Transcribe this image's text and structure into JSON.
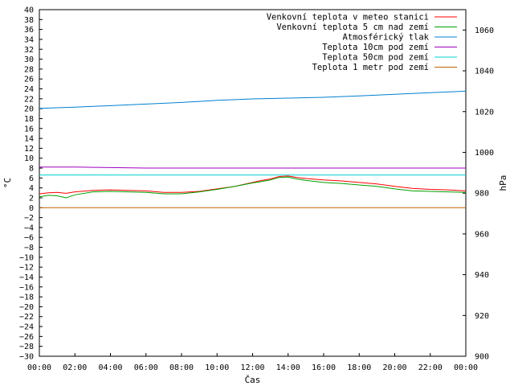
{
  "chart_data": {
    "type": "line",
    "xlabel": "Čas",
    "ylabel": "°C",
    "y2label": "hPa",
    "x_ticks": [
      "00:00",
      "02:00",
      "04:00",
      "06:00",
      "08:00",
      "10:00",
      "12:00",
      "14:00",
      "16:00",
      "18:00",
      "20:00",
      "22:00",
      "00:00"
    ],
    "x_range_hours": [
      0,
      24
    ],
    "ylim": [
      -30,
      40
    ],
    "y_tick_step": 2,
    "y2lim": [
      900,
      1070
    ],
    "y2_ticks": [
      900,
      920,
      940,
      960,
      980,
      1000,
      1020,
      1040,
      1060
    ],
    "grid": "off",
    "legend_position": "top-right",
    "series": [
      {
        "name": "Venkovní teplota v meteo stanici",
        "color": "#ff0000",
        "axis": "left",
        "points": [
          [
            0,
            2.8
          ],
          [
            0.5,
            3.0
          ],
          [
            1,
            3.1
          ],
          [
            1.5,
            2.9
          ],
          [
            2,
            3.2
          ],
          [
            3,
            3.5
          ],
          [
            4,
            3.6
          ],
          [
            5,
            3.5
          ],
          [
            6,
            3.4
          ],
          [
            7,
            3.1
          ],
          [
            8,
            3.1
          ],
          [
            9,
            3.3
          ],
          [
            10,
            3.8
          ],
          [
            11,
            4.3
          ],
          [
            12,
            5.1
          ],
          [
            12.5,
            5.5
          ],
          [
            13,
            5.8
          ],
          [
            13.5,
            6.3
          ],
          [
            14,
            6.4
          ],
          [
            14.5,
            6.1
          ],
          [
            15,
            5.9
          ],
          [
            16,
            5.6
          ],
          [
            17,
            5.4
          ],
          [
            18,
            5.1
          ],
          [
            19,
            4.8
          ],
          [
            20,
            4.3
          ],
          [
            21,
            3.9
          ],
          [
            22,
            3.7
          ],
          [
            23,
            3.6
          ],
          [
            24,
            3.4
          ]
        ]
      },
      {
        "name": "Venkovní teplota 5 cm nad zemí",
        "color": "#00a000",
        "axis": "left",
        "points": [
          [
            0,
            2.2
          ],
          [
            0.5,
            2.5
          ],
          [
            1,
            2.4
          ],
          [
            1.5,
            2.0
          ],
          [
            2,
            2.6
          ],
          [
            3,
            3.2
          ],
          [
            4,
            3.3
          ],
          [
            5,
            3.2
          ],
          [
            6,
            3.1
          ],
          [
            7,
            2.8
          ],
          [
            8,
            2.8
          ],
          [
            9,
            3.2
          ],
          [
            10,
            3.7
          ],
          [
            11,
            4.3
          ],
          [
            12,
            5.0
          ],
          [
            12.5,
            5.3
          ],
          [
            13,
            5.6
          ],
          [
            13.5,
            6.1
          ],
          [
            14,
            6.2
          ],
          [
            14.5,
            5.8
          ],
          [
            15,
            5.5
          ],
          [
            16,
            5.1
          ],
          [
            17,
            4.9
          ],
          [
            18,
            4.6
          ],
          [
            19,
            4.3
          ],
          [
            20,
            3.8
          ],
          [
            21,
            3.4
          ],
          [
            22,
            3.3
          ],
          [
            23,
            3.2
          ],
          [
            24,
            3.1
          ]
        ]
      },
      {
        "name": "Atmosférický tlak",
        "color": "#0080d0",
        "axis": "right",
        "points": [
          [
            0,
            1021.6
          ],
          [
            2,
            1022.2
          ],
          [
            4,
            1022.9
          ],
          [
            6,
            1023.7
          ],
          [
            8,
            1024.5
          ],
          [
            10,
            1025.5
          ],
          [
            12,
            1026.2
          ],
          [
            14,
            1026.6
          ],
          [
            16,
            1027.0
          ],
          [
            18,
            1027.7
          ],
          [
            20,
            1028.5
          ],
          [
            22,
            1029.3
          ],
          [
            24,
            1030.0
          ]
        ]
      },
      {
        "name": "Teplota 10cm pod zemí",
        "color": "#a000c0",
        "axis": "left",
        "points": [
          [
            0,
            8.2
          ],
          [
            2,
            8.2
          ],
          [
            4,
            8.1
          ],
          [
            6,
            8.0
          ],
          [
            8,
            8.0
          ],
          [
            12,
            8.0
          ],
          [
            16,
            8.0
          ],
          [
            20,
            8.0
          ],
          [
            24,
            8.0
          ]
        ]
      },
      {
        "name": "Teplota 50cm pod zemí",
        "color": "#00d0d0",
        "axis": "left",
        "points": [
          [
            0,
            6.6
          ],
          [
            24,
            6.6
          ]
        ]
      },
      {
        "name": "Teplota 1 metr pod zemí",
        "color": "#c06000",
        "axis": "left",
        "points": [
          [
            0,
            0.0
          ],
          [
            24,
            0.0
          ]
        ]
      }
    ]
  }
}
